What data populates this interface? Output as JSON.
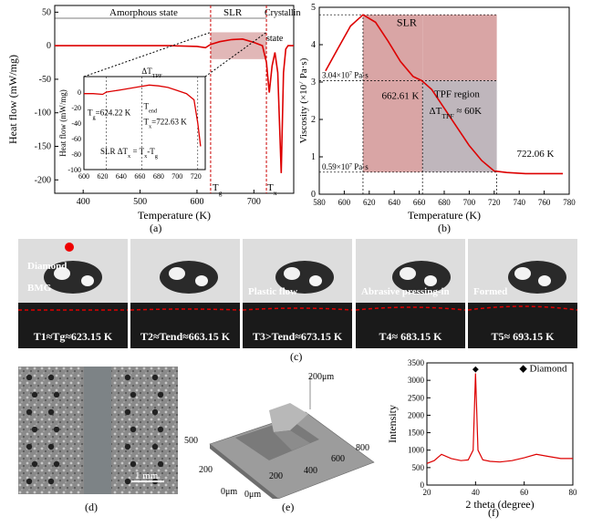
{
  "panel_a": {
    "label": "(a)",
    "ylabel": "Heat flow (mW/mg)",
    "xlabel": "Temperature (K)",
    "regions": [
      "Amorphous state",
      "SLR",
      "Crystalline state"
    ],
    "tg_label": "T_g",
    "tx_label": "T_x",
    "inset": {
      "ylabel": "Heat flow (mW/mg)",
      "tg_value": "T_g=624.22 K",
      "tend_label": "T_end",
      "tx_value": "T_x=722.63 K",
      "dtpf_label": "ΔT_TPF",
      "slr_label": "SLR ΔT_x = T_x-T_g"
    }
  },
  "panel_b": {
    "label": "(b)",
    "ylabel": "Viscosity (×10^7 Pa·s)",
    "xlabel": "Temperature (K)",
    "slr_label": "SLR",
    "v1_label": "3.04×10^7 Pa·s",
    "v2_label": "0.59×10^7 Pa·s",
    "t1_label": "662.61 K",
    "t2_label": "722.06 K",
    "tpf_region": "TPF region",
    "tpf_delta": "ΔT_TPF ≈ 60K"
  },
  "panel_c": {
    "label": "(c)",
    "frames": [
      {
        "caption": "T1≈Tg≈623.15 K",
        "labels": [
          "Diamond",
          "BMG"
        ]
      },
      {
        "caption": "T2≈Tend≈663.15 K",
        "labels": []
      },
      {
        "caption": "T3>Tend≈673.15 K",
        "labels": [
          "Plastic flow"
        ]
      },
      {
        "caption": "T4≈ 683.15 K",
        "labels": [
          "Abrasive pressing-in"
        ]
      },
      {
        "caption": "T5≈ 693.15 K",
        "labels": [
          "Formed"
        ]
      }
    ]
  },
  "panel_d": {
    "label": "(d)",
    "scale": "1 mm"
  },
  "panel_e": {
    "label": "(e)",
    "ticks_z": "200μm",
    "ticks_y": [
      "500",
      "200",
      "0μm"
    ],
    "ticks_x": [
      "0μm",
      "200",
      "400",
      "600",
      "800"
    ]
  },
  "panel_f": {
    "label": "(f)",
    "ylabel": "Intensity",
    "xlabel": "2 theta (degree)",
    "legend": "Diamond"
  },
  "chart_data": [
    {
      "type": "line",
      "id": "a",
      "xlabel": "Temperature (K)",
      "ylabel": "Heat flow (mW/mg)",
      "xlim": [
        350,
        770
      ],
      "ylim": [
        -220,
        60
      ],
      "xticks": [
        400,
        500,
        600,
        700
      ],
      "yticks": [
        50,
        0,
        -50,
        -100,
        -150,
        -200
      ],
      "x": [
        350,
        400,
        450,
        500,
        550,
        600,
        615,
        624,
        640,
        660,
        680,
        700,
        715,
        722,
        727,
        732,
        737,
        742,
        748,
        752,
        756,
        760,
        770
      ],
      "y": [
        0,
        0,
        0,
        0,
        0,
        -1,
        -3,
        2,
        6,
        9,
        10,
        5,
        0,
        -25,
        -70,
        -30,
        -10,
        -40,
        -190,
        -40,
        -5,
        0,
        0
      ]
    },
    {
      "type": "line",
      "id": "a-inset",
      "xlim": [
        600,
        730
      ],
      "ylim": [
        -100,
        20
      ],
      "xticks": [
        600,
        620,
        640,
        660,
        680,
        700,
        720
      ],
      "yticks": [
        0,
        -20,
        -40,
        -60,
        -80,
        -100
      ],
      "x": [
        600,
        610,
        620,
        624,
        640,
        660,
        670,
        680,
        690,
        700,
        710,
        718,
        722,
        725
      ],
      "y": [
        -2,
        -2,
        -3,
        0,
        3,
        7,
        9,
        8,
        6,
        2,
        -2,
        -10,
        -40,
        -70
      ]
    },
    {
      "type": "line",
      "id": "b",
      "xlabel": "Temperature (K)",
      "ylabel": "Viscosity (×10^7 Pa·s)",
      "xlim": [
        580,
        780
      ],
      "ylim": [
        0,
        5
      ],
      "xticks": [
        580,
        600,
        620,
        640,
        660,
        680,
        700,
        720,
        740,
        760,
        780
      ],
      "yticks": [
        0,
        1,
        2,
        3,
        4,
        5
      ],
      "x": [
        585,
        595,
        605,
        615,
        625,
        635,
        645,
        655,
        662,
        670,
        680,
        690,
        700,
        710,
        720,
        730,
        745,
        760,
        775
      ],
      "y": [
        3.3,
        3.9,
        4.5,
        4.8,
        4.6,
        4.1,
        3.55,
        3.15,
        3.04,
        2.8,
        2.3,
        1.8,
        1.3,
        0.9,
        0.62,
        0.58,
        0.55,
        0.55,
        0.55
      ]
    },
    {
      "type": "line",
      "id": "f",
      "xlabel": "2 theta (degree)",
      "ylabel": "Intensity",
      "xlim": [
        20,
        80
      ],
      "ylim": [
        0,
        3500
      ],
      "xticks": [
        20,
        40,
        60,
        80
      ],
      "yticks": [
        0,
        500,
        1000,
        1500,
        2000,
        2500,
        3000,
        3500
      ],
      "series_name": "Diamond",
      "x": [
        20,
        23,
        26,
        30,
        34,
        37,
        39,
        40,
        41,
        43,
        46,
        50,
        55,
        60,
        65,
        70,
        75,
        80
      ],
      "y": [
        620,
        700,
        880,
        760,
        700,
        720,
        1000,
        3200,
        1000,
        720,
        680,
        660,
        700,
        780,
        880,
        820,
        760,
        760
      ]
    }
  ]
}
